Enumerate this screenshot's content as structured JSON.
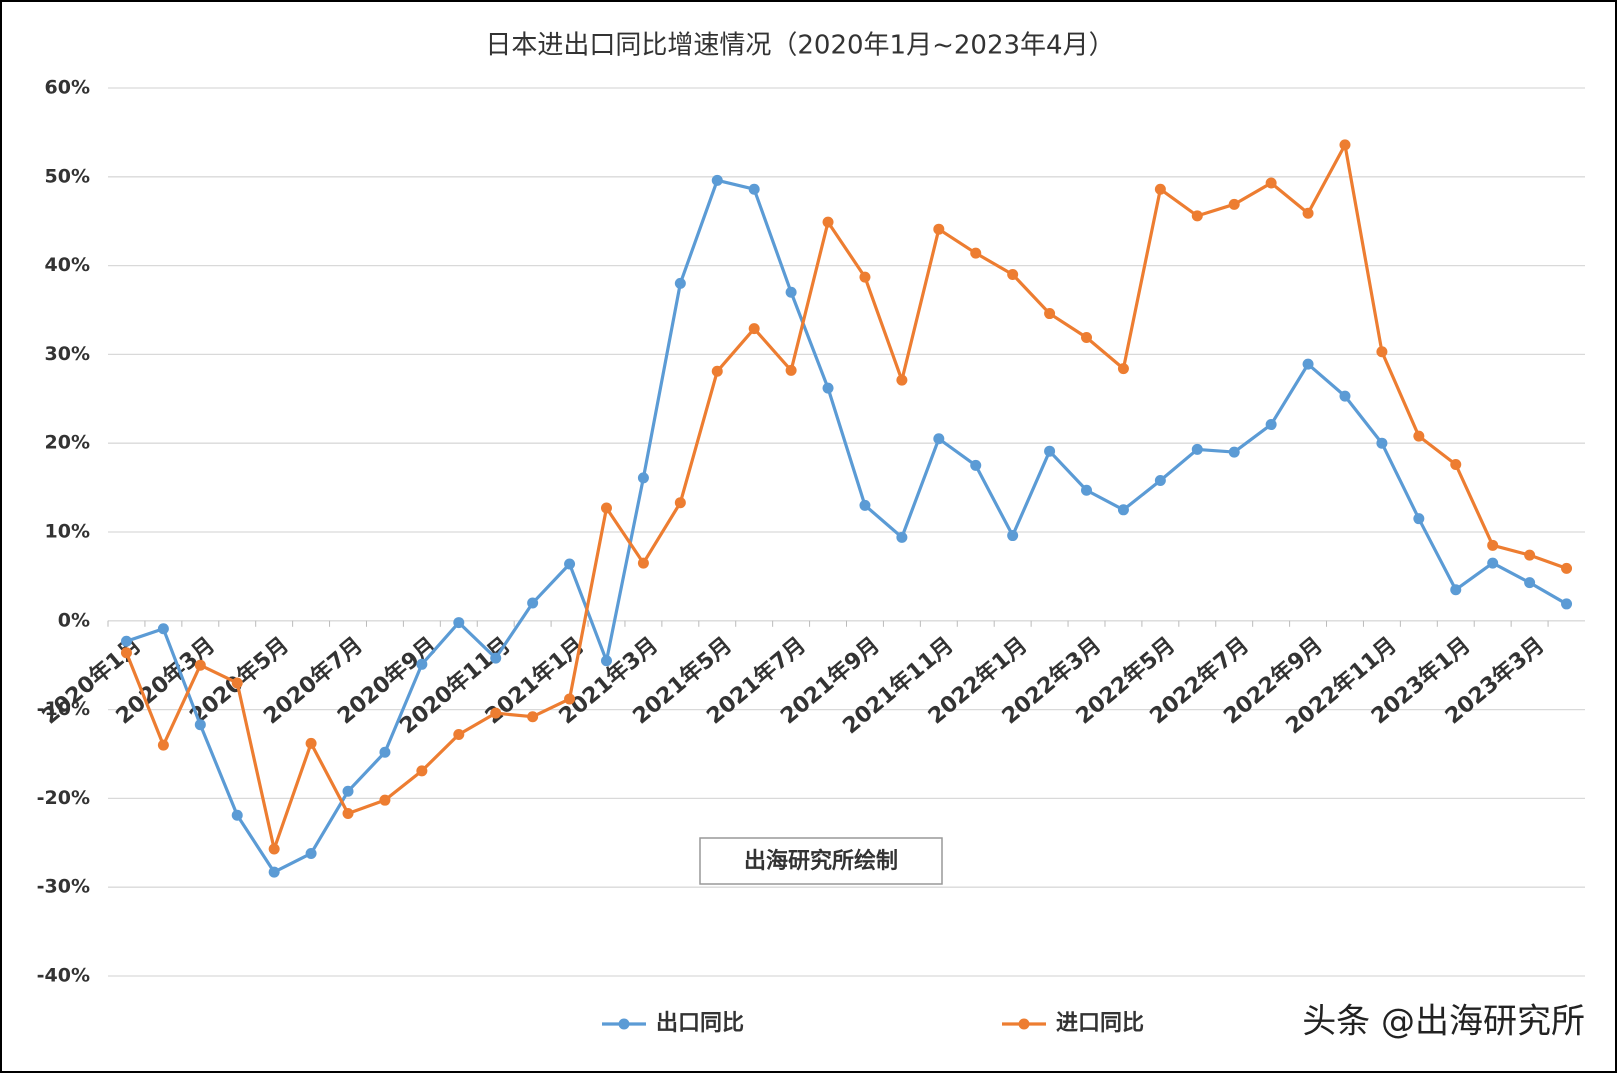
{
  "chart_data": {
    "type": "line",
    "title": "日本进出口同比增速情况（2020年1月~2023年4月）",
    "categories": [
      "2020年1月",
      null,
      "2020年3月",
      null,
      "2020年5月",
      null,
      "2020年7月",
      null,
      "2020年9月",
      null,
      "2020年11月",
      null,
      "2021年1月",
      null,
      "2021年3月",
      null,
      "2021年5月",
      null,
      "2021年7月",
      null,
      "2021年9月",
      null,
      "2021年11月",
      null,
      "2022年1月",
      null,
      "2022年3月",
      null,
      "2022年5月",
      null,
      "2022年7月",
      null,
      "2022年9月",
      null,
      "2022年11月",
      null,
      "2023年1月",
      null,
      "2023年3月",
      null
    ],
    "series": [
      {
        "name": "出口同比",
        "color": "#5b9bd5",
        "values": [
          -2.3,
          -0.9,
          -11.7,
          -21.9,
          -28.3,
          -26.2,
          -19.2,
          -14.8,
          -4.9,
          -0.2,
          -4.2,
          2.0,
          6.4,
          -4.5,
          16.1,
          38.0,
          49.6,
          48.6,
          37.0,
          26.2,
          13.0,
          9.4,
          20.5,
          17.5,
          9.6,
          19.1,
          14.7,
          12.5,
          15.8,
          19.3,
          19.0,
          22.1,
          28.9,
          25.3,
          20.0,
          11.5,
          3.5,
          6.5,
          4.3,
          1.9
        ]
      },
      {
        "name": "进口同比",
        "color": "#ed7d31",
        "values": [
          -3.6,
          -14.0,
          -5.0,
          -7.0,
          -25.7,
          -13.8,
          -21.7,
          -20.2,
          -16.9,
          -12.8,
          -10.4,
          -10.8,
          -8.8,
          12.7,
          6.5,
          13.3,
          28.1,
          32.9,
          28.2,
          44.9,
          38.7,
          27.1,
          44.1,
          41.4,
          39.0,
          34.6,
          31.9,
          28.4,
          48.6,
          45.6,
          46.9,
          49.3,
          45.9,
          53.6,
          30.3,
          20.8,
          17.6,
          8.5,
          7.4,
          5.9
        ]
      }
    ],
    "ylim": [
      -40,
      60
    ],
    "yticks": [
      {
        "value": -40,
        "label": "-40%"
      },
      {
        "value": -30,
        "label": "-30%"
      },
      {
        "value": -20,
        "label": "-20%"
      },
      {
        "value": -10,
        "label": "-10%"
      },
      {
        "value": 0,
        "label": "0%"
      },
      {
        "value": 10,
        "label": "10%"
      },
      {
        "value": 20,
        "label": "20%"
      },
      {
        "value": 30,
        "label": "30%"
      },
      {
        "value": 40,
        "label": "40%"
      },
      {
        "value": 50,
        "label": "50%"
      },
      {
        "value": 60,
        "label": "60%"
      }
    ],
    "grid": true,
    "note": "出海研究所绘制",
    "watermark": "头条 @出海研究所"
  }
}
